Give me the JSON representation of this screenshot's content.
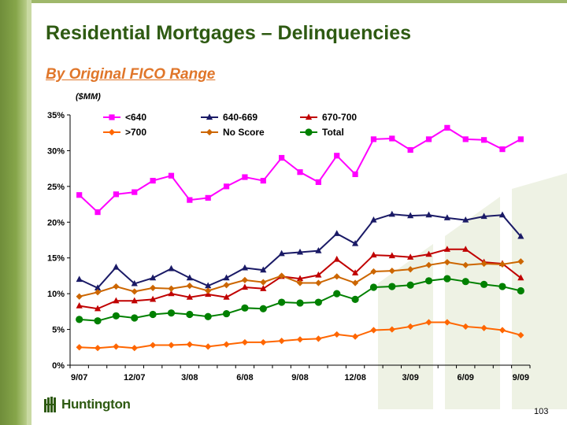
{
  "slide": {
    "title": "Residential Mortgages – Delinquencies",
    "subtitle": "By Original FICO Range",
    "units": "($MM)",
    "page_number": "103",
    "logo_text": "Huntington"
  },
  "colors": {
    "title": "#2e5a12",
    "subtitle": "#e0762a",
    "sidebar": "#7a9a40"
  },
  "chart_data": {
    "type": "line",
    "x": [
      "9/07",
      "10/07",
      "11/07",
      "12/07",
      "1/08",
      "2/08",
      "3/08",
      "4/08",
      "5/08",
      "6/08",
      "7/08",
      "8/08",
      "9/08",
      "10/08",
      "11/08",
      "12/08",
      "1/09",
      "2/09",
      "3/09",
      "4/09",
      "5/09",
      "6/09",
      "7/09",
      "8/09",
      "9/09"
    ],
    "x_tick_labels": [
      "9/07",
      "12/07",
      "3/08",
      "6/08",
      "9/08",
      "12/08",
      "3/09",
      "6/09",
      "9/09"
    ],
    "y_tick_labels": [
      "0%",
      "5%",
      "10%",
      "15%",
      "20%",
      "25%",
      "30%",
      "35%"
    ],
    "ylim": [
      0,
      35
    ],
    "y_unit": "percent",
    "grid": false,
    "legend": "top",
    "series": [
      {
        "name": "<640",
        "color": "#ff00ff",
        "marker": "square",
        "values": [
          23.8,
          21.4,
          23.9,
          24.2,
          25.8,
          26.5,
          23.1,
          23.4,
          25.0,
          26.3,
          25.8,
          29.0,
          27.0,
          25.6,
          29.3,
          26.7,
          31.6,
          31.7,
          30.1,
          31.6,
          33.2,
          31.6,
          31.5,
          30.2,
          31.6
        ]
      },
      {
        "name": "640-669",
        "color": "#1a1a66",
        "marker": "triangle",
        "values": [
          12.0,
          10.8,
          13.7,
          11.4,
          12.2,
          13.5,
          12.2,
          11.1,
          12.2,
          13.6,
          13.3,
          15.6,
          15.8,
          16.0,
          18.4,
          17.0,
          20.3,
          21.1,
          20.9,
          21.0,
          20.6,
          20.3,
          20.8,
          21.0,
          18.0
        ]
      },
      {
        "name": "670-700",
        "color": "#c00000",
        "marker": "triangle",
        "values": [
          8.3,
          7.9,
          9.0,
          9.0,
          9.2,
          10.0,
          9.5,
          9.9,
          9.5,
          10.9,
          10.7,
          12.4,
          12.1,
          12.6,
          14.8,
          12.9,
          15.4,
          15.3,
          15.1,
          15.5,
          16.2,
          16.2,
          14.4,
          14.2,
          12.2
        ]
      },
      {
        "name": ">700",
        "color": "#ff6600",
        "marker": "diamond",
        "values": [
          2.5,
          2.4,
          2.6,
          2.4,
          2.8,
          2.8,
          2.9,
          2.6,
          2.9,
          3.2,
          3.2,
          3.4,
          3.6,
          3.7,
          4.3,
          4.0,
          4.9,
          5.0,
          5.4,
          6.0,
          6.0,
          5.4,
          5.2,
          4.9,
          4.2
        ]
      },
      {
        "name": "No Score",
        "color": "#cc6600",
        "marker": "diamond",
        "values": [
          9.6,
          10.2,
          11.0,
          10.3,
          10.8,
          10.7,
          11.1,
          10.4,
          11.2,
          11.9,
          11.6,
          12.5,
          11.5,
          11.5,
          12.4,
          11.5,
          13.1,
          13.2,
          13.4,
          14.0,
          14.4,
          14.0,
          14.2,
          14.1,
          14.5
        ]
      },
      {
        "name": "Total",
        "color": "#008000",
        "marker": "circle",
        "values": [
          6.4,
          6.2,
          6.9,
          6.6,
          7.1,
          7.3,
          7.1,
          6.8,
          7.2,
          8.0,
          7.9,
          8.8,
          8.7,
          8.8,
          10.0,
          9.2,
          10.9,
          11.0,
          11.2,
          11.8,
          12.1,
          11.7,
          11.3,
          11.0,
          10.4
        ]
      }
    ]
  }
}
